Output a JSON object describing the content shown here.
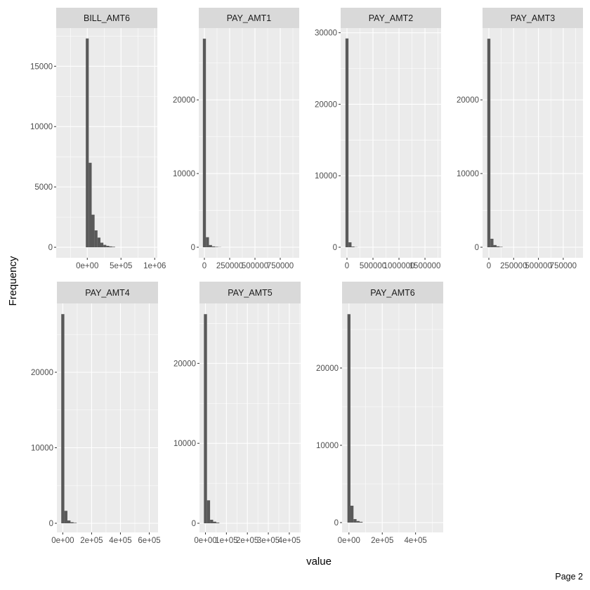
{
  "chart_data": {
    "type": "bar",
    "subtype": "faceted-histogram",
    "xlabel": "value",
    "ylabel": "Frequency",
    "grid": true,
    "colors": {
      "bar": "#595959",
      "panel_bg": "#ebebeb",
      "strip_bg": "#d9d9d9",
      "grid": "#ffffff"
    },
    "panels": [
      {
        "name": "BILL_AMT6",
        "xlim": [
          -461000,
          1039000
        ],
        "ylim": [
          -870,
          18160
        ],
        "xticks": [
          0,
          500000,
          1000000
        ],
        "xtick_labels": [
          "0e+00",
          "5e+05",
          "1e+06"
        ],
        "yticks": [
          0,
          5000,
          10000,
          15000
        ],
        "ytick_labels": [
          "0",
          "5000",
          "10000",
          "15000"
        ],
        "binwidth": 43375,
        "first_bin_center": 0,
        "counts": [
          17300,
          7000,
          2700,
          1400,
          800,
          380,
          200,
          120,
          70,
          40
        ]
      },
      {
        "name": "PAY_AMT1",
        "xlim": [
          -55600,
          937500
        ],
        "ylim": [
          -1430,
          29740
        ],
        "xticks": [
          0,
          250000,
          500000,
          750000
        ],
        "xtick_labels": [
          "0",
          "250000",
          "500000",
          "750000"
        ],
        "yticks": [
          0,
          10000,
          20000
        ],
        "ytick_labels": [
          "0",
          "10000",
          "20000"
        ],
        "binwidth": 30122,
        "first_bin_center": 0,
        "counts": [
          28300,
          1360,
          300,
          110,
          50,
          20
        ]
      },
      {
        "name": "PAY_AMT2",
        "xlim": [
          -121600,
          1810000
        ],
        "ylim": [
          -1474,
          30650
        ],
        "xticks": [
          0,
          500000,
          1000000,
          1500000
        ],
        "xtick_labels": [
          "0",
          "500000",
          "1000000",
          "1500000"
        ],
        "yticks": [
          0,
          10000,
          20000,
          30000
        ],
        "ytick_labels": [
          "0",
          "10000",
          "20000",
          "30000"
        ],
        "binwidth": 58078,
        "first_bin_center": 0,
        "counts": [
          29200,
          690,
          90,
          20
        ]
      },
      {
        "name": "PAY_AMT3",
        "xlim": [
          -63700,
          949000
        ],
        "ylim": [
          -1430,
          29740
        ],
        "xticks": [
          0,
          250000,
          500000,
          750000
        ],
        "xtick_labels": [
          "0",
          "250000",
          "500000",
          "750000"
        ],
        "yticks": [
          0,
          10000,
          20000
        ],
        "ytick_labels": [
          "0",
          "10000",
          "20000"
        ],
        "binwidth": 30898,
        "first_bin_center": 0,
        "counts": [
          28300,
          1150,
          300,
          120,
          50
        ]
      },
      {
        "name": "PAY_AMT4",
        "xlim": [
          -41000,
          661000
        ],
        "ylim": [
          -1209,
          29116
        ],
        "xticks": [
          0,
          200000,
          400000,
          600000
        ],
        "xtick_labels": [
          "0e+00",
          "2e+05",
          "4e+05",
          "6e+05"
        ],
        "yticks": [
          0,
          10000,
          20000
        ],
        "ytick_labels": [
          "0",
          "10000",
          "20000"
        ],
        "binwidth": 21414,
        "first_bin_center": 0,
        "counts": [
          27700,
          1650,
          370,
          140,
          60
        ]
      },
      {
        "name": "PAY_AMT5",
        "xlim": [
          -28500,
          454000
        ],
        "ylim": [
          -1142,
          27500
        ],
        "xticks": [
          0,
          100000,
          200000,
          300000,
          400000
        ],
        "xtick_labels": [
          "0e+00",
          "1e+05",
          "2e+05",
          "3e+05",
          "4e+05"
        ],
        "yticks": [
          0,
          10000,
          20000
        ],
        "ytick_labels": [
          "0",
          "10000",
          "20000"
        ],
        "binwidth": 14708,
        "first_bin_center": 0,
        "counts": [
          26160,
          2870,
          440,
          200,
          80
        ]
      },
      {
        "name": "PAY_AMT6",
        "xlim": [
          -41400,
          566000
        ],
        "ylim": [
          -1273,
          28360
        ],
        "xticks": [
          0,
          200000,
          400000
        ],
        "xtick_labels": [
          "0e+00",
          "2e+05",
          "4e+05"
        ],
        "yticks": [
          0,
          10000,
          20000
        ],
        "ytick_labels": [
          "0",
          "10000",
          "20000"
        ],
        "binwidth": 18230,
        "first_bin_center": 0,
        "counts": [
          26970,
          2180,
          450,
          200,
          100
        ]
      }
    ]
  },
  "page_label": "Page 2"
}
